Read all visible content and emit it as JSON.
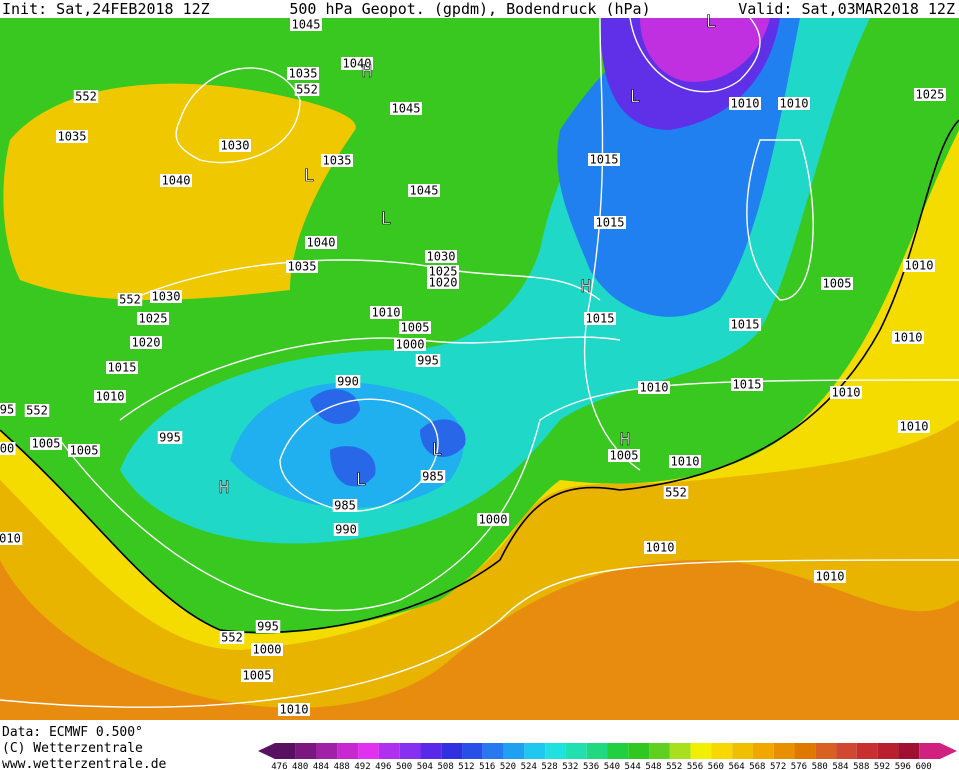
{
  "header": {
    "init": "Init: Sat,24FEB2018 12Z",
    "title": "500 hPa Geopot. (gpdm), Bodendruck (hPa)",
    "valid": "Valid: Sat,03MAR2018 12Z"
  },
  "isobar_labels": [
    "1045",
    "1035",
    "1040",
    "552",
    "552",
    "1035",
    "1030",
    "1045",
    "1035",
    "1040",
    "1045",
    "1040",
    "1035",
    "1030",
    "1025",
    "1020",
    "552",
    "1030",
    "1025",
    "1020",
    "1015",
    "1010",
    "1010",
    "1005",
    "1000",
    "995",
    "990",
    "995",
    "1005",
    "1005",
    "985",
    "985",
    "990",
    "1000",
    "995",
    "552",
    "1000",
    "1005",
    "1010",
    "1015",
    "1015",
    "1015",
    "1010",
    "1010",
    "1025",
    "1010",
    "1005",
    "1015",
    "1010",
    "1015",
    "1010",
    "1010",
    "1010",
    "1005",
    "1010",
    "552",
    "1010",
    "1010",
    "95",
    "552",
    "00",
    "010"
  ],
  "pressure_centers": [
    "H",
    "L",
    "L",
    "L",
    "L",
    "H",
    "H",
    "L",
    "L",
    "H"
  ],
  "footer": {
    "data": "Data: ECMWF  0.500°",
    "copyright": "(C) Wetterzentrale",
    "url": "www.wetterzentrale.de"
  },
  "legend": {
    "values": [
      476,
      480,
      484,
      488,
      492,
      496,
      500,
      504,
      508,
      512,
      516,
      520,
      524,
      528,
      532,
      536,
      540,
      544,
      548,
      552,
      556,
      560,
      564,
      568,
      572,
      576,
      580,
      584,
      588,
      592,
      596,
      600
    ],
    "colors": [
      "#5a1060",
      "#7a1880",
      "#a020a8",
      "#c828d0",
      "#e030f0",
      "#b030f0",
      "#8830f0",
      "#5a28e8",
      "#3030e0",
      "#2850e8",
      "#2878f0",
      "#20a0f0",
      "#20c8f0",
      "#20e0e0",
      "#20e0b0",
      "#20d880",
      "#20d040",
      "#30c820",
      "#60d020",
      "#a8e020",
      "#f0f000",
      "#f8d800",
      "#f0c000",
      "#f0a800",
      "#e89000",
      "#e07800",
      "#d86020",
      "#d04830",
      "#c83030",
      "#b82030",
      "#a01030",
      "#d02080"
    ]
  }
}
